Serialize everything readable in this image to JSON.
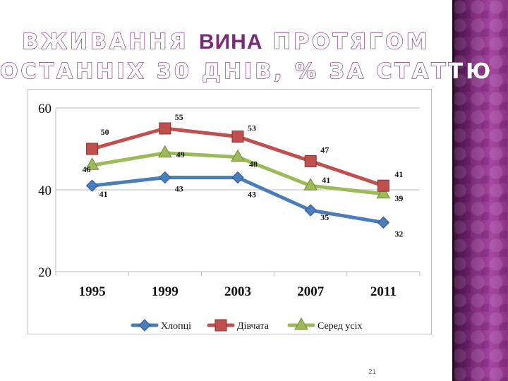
{
  "slide": {
    "title_line1_part1": "ВЖИВАННЯ",
    "title_line1_accent": "ВИНА",
    "title_line1_part2": "ПРОТЯГОМ",
    "title_line2": "ОСТАННІХ 30 ДНІВ, % ЗА СТАТТЮ",
    "page_number": "21"
  },
  "chart_data": {
    "type": "line",
    "categories": [
      "1995",
      "1999",
      "2003",
      "2007",
      "2011"
    ],
    "ylim": [
      20,
      60
    ],
    "yticks": [
      20,
      40,
      60
    ],
    "grid": true,
    "legend_position": "bottom",
    "series": [
      {
        "name": "Хлопці",
        "values": [
          41,
          43,
          43,
          35,
          32
        ],
        "color": "#4a7ebb",
        "marker": "diamond"
      },
      {
        "name": "Дівчата",
        "values": [
          50,
          55,
          53,
          47,
          41
        ],
        "color": "#c0504d",
        "marker": "square"
      },
      {
        "name": "Серед усіх",
        "values": [
          46,
          49,
          48,
          41,
          39
        ],
        "color": "#9bbb59",
        "marker": "triangle"
      }
    ],
    "data_labels": [
      {
        "series": 0,
        "labels": [
          "41",
          "43",
          "43",
          "35",
          "32"
        ]
      },
      {
        "series": 1,
        "labels": [
          "50",
          "55",
          "53",
          "47",
          "41"
        ]
      },
      {
        "series": 2,
        "labels": [
          "46",
          "49",
          "48",
          "41",
          "39"
        ]
      }
    ]
  }
}
